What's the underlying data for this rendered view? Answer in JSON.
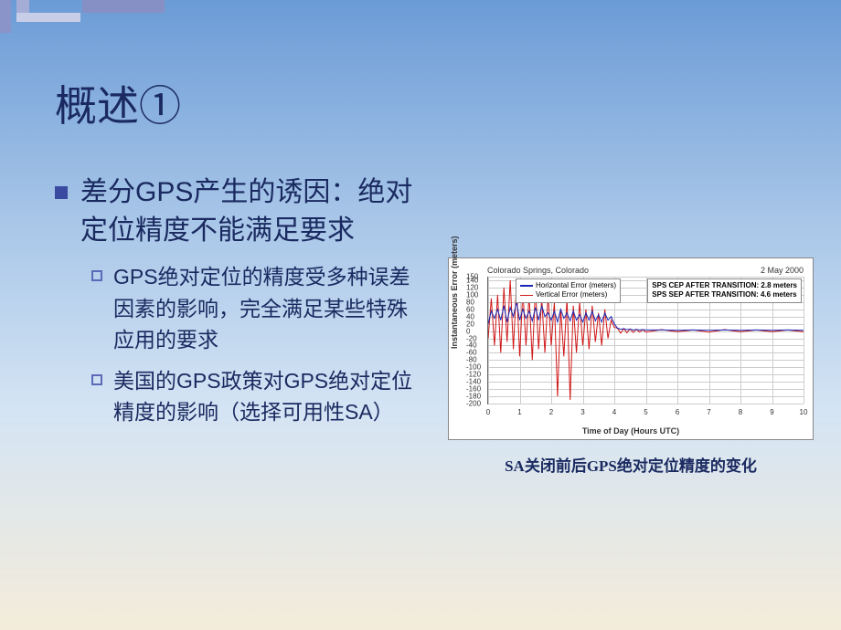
{
  "title": "概述①",
  "main_bullet": "差分GPS产生的诱因：绝对定位精度不能满足要求",
  "sub_bullets": [
    "GPS绝对定位的精度受多种误差因素的影响，完全满足某些特殊应用的要求",
    "美国的GPS政策对GPS绝对定位精度的影响（选择可用性SA）"
  ],
  "chart": {
    "type": "line",
    "header_left": "Colorado Springs, Colorado",
    "header_right": "2 May 2000",
    "ylabel": "Instantaneous Error (meters)",
    "xlabel": "Time of Day (Hours UTC)",
    "xlim": [
      0,
      10
    ],
    "ylim": [
      -200,
      150
    ],
    "xticks": [
      0,
      1,
      2,
      3,
      4,
      5,
      6,
      7,
      8,
      9,
      10
    ],
    "yticks": [
      -200,
      -180,
      -160,
      -140,
      -120,
      -100,
      -80,
      -60,
      -40,
      -20,
      0,
      20,
      40,
      60,
      80,
      100,
      120,
      140,
      150
    ],
    "ytick_labels": [
      "-200",
      "-180",
      "-160",
      "-140",
      "-120",
      "-100",
      "-80",
      "-60",
      "-40",
      "-20",
      "0",
      "20",
      "40",
      "60",
      "80",
      "100",
      "120",
      "140",
      "150"
    ],
    "grid_color": "#cccccc",
    "background_color": "#ffffff",
    "legend": [
      {
        "label": "Horizontal Error (meters)",
        "color": "#1828b4"
      },
      {
        "label": "Vertical Error (meters)",
        "color": "#d01818"
      }
    ],
    "annotation": [
      "SPS CEP AFTER TRANSITION:  2.8 meters",
      "SPS SEP AFTER TRANSITION:  4.6 meters"
    ],
    "series": {
      "horizontal": {
        "color": "#1828b4",
        "points": [
          [
            0,
            20
          ],
          [
            0.1,
            55
          ],
          [
            0.2,
            35
          ],
          [
            0.3,
            60
          ],
          [
            0.4,
            30
          ],
          [
            0.5,
            70
          ],
          [
            0.6,
            25
          ],
          [
            0.7,
            65
          ],
          [
            0.8,
            40
          ],
          [
            0.9,
            80
          ],
          [
            1.0,
            30
          ],
          [
            1.1,
            60
          ],
          [
            1.2,
            35
          ],
          [
            1.3,
            55
          ],
          [
            1.4,
            28
          ],
          [
            1.5,
            65
          ],
          [
            1.6,
            30
          ],
          [
            1.7,
            70
          ],
          [
            1.8,
            40
          ],
          [
            1.9,
            50
          ],
          [
            2.0,
            30
          ],
          [
            2.1,
            55
          ],
          [
            2.2,
            25
          ],
          [
            2.3,
            60
          ],
          [
            2.4,
            35
          ],
          [
            2.5,
            50
          ],
          [
            2.6,
            28
          ],
          [
            2.7,
            55
          ],
          [
            2.8,
            30
          ],
          [
            2.9,
            45
          ],
          [
            3.0,
            25
          ],
          [
            3.1,
            50
          ],
          [
            3.2,
            30
          ],
          [
            3.3,
            55
          ],
          [
            3.4,
            28
          ],
          [
            3.5,
            45
          ],
          [
            3.6,
            25
          ],
          [
            3.7,
            50
          ],
          [
            3.8,
            30
          ],
          [
            3.9,
            40
          ],
          [
            4.0,
            20
          ],
          [
            4.1,
            8
          ],
          [
            4.2,
            5
          ],
          [
            4.3,
            6
          ],
          [
            4.4,
            4
          ],
          [
            4.5,
            5
          ],
          [
            4.6,
            3
          ],
          [
            4.7,
            4
          ],
          [
            4.8,
            3
          ],
          [
            4.9,
            4
          ],
          [
            5.0,
            3
          ],
          [
            5.5,
            3
          ],
          [
            6.0,
            2
          ],
          [
            6.5,
            3
          ],
          [
            7.0,
            2
          ],
          [
            7.5,
            3
          ],
          [
            8.0,
            2
          ],
          [
            8.5,
            3
          ],
          [
            9.0,
            2
          ],
          [
            9.5,
            3
          ],
          [
            10.0,
            2
          ]
        ]
      },
      "vertical": {
        "color": "#d01818",
        "points": [
          [
            0,
            -20
          ],
          [
            0.1,
            90
          ],
          [
            0.2,
            -40
          ],
          [
            0.3,
            100
          ],
          [
            0.4,
            -60
          ],
          [
            0.5,
            120
          ],
          [
            0.6,
            -30
          ],
          [
            0.7,
            140
          ],
          [
            0.8,
            -50
          ],
          [
            0.9,
            130
          ],
          [
            1.0,
            -70
          ],
          [
            1.1,
            110
          ],
          [
            1.2,
            -40
          ],
          [
            1.3,
            100
          ],
          [
            1.4,
            -80
          ],
          [
            1.5,
            120
          ],
          [
            1.6,
            -50
          ],
          [
            1.7,
            90
          ],
          [
            1.8,
            -60
          ],
          [
            1.9,
            100
          ],
          [
            2.0,
            -40
          ],
          [
            2.1,
            80
          ],
          [
            2.2,
            -180
          ],
          [
            2.3,
            60
          ],
          [
            2.4,
            -70
          ],
          [
            2.5,
            90
          ],
          [
            2.6,
            -190
          ],
          [
            2.7,
            70
          ],
          [
            2.8,
            -60
          ],
          [
            2.9,
            80
          ],
          [
            3.0,
            -40
          ],
          [
            3.1,
            60
          ],
          [
            3.2,
            -50
          ],
          [
            3.3,
            70
          ],
          [
            3.4,
            -30
          ],
          [
            3.5,
            50
          ],
          [
            3.6,
            -40
          ],
          [
            3.7,
            60
          ],
          [
            3.8,
            -20
          ],
          [
            3.9,
            30
          ],
          [
            4.0,
            10
          ],
          [
            4.1,
            8
          ],
          [
            4.2,
            -6
          ],
          [
            4.3,
            7
          ],
          [
            4.4,
            -5
          ],
          [
            4.5,
            6
          ],
          [
            4.6,
            -4
          ],
          [
            4.7,
            5
          ],
          [
            4.8,
            -3
          ],
          [
            4.9,
            4
          ],
          [
            5.0,
            -3
          ],
          [
            5.5,
            4
          ],
          [
            6.0,
            -2
          ],
          [
            6.5,
            3
          ],
          [
            7.0,
            -3
          ],
          [
            7.5,
            4
          ],
          [
            8.0,
            -2
          ],
          [
            8.5,
            3
          ],
          [
            9.0,
            -2
          ],
          [
            9.5,
            3
          ],
          [
            10.0,
            -2
          ]
        ]
      }
    }
  },
  "caption": "SA关闭前后GPS绝对定位精度的变化",
  "colors": {
    "text": "#1a2a60",
    "bullet_fill": "#3a4aa0",
    "bullet_border": "#5a6ab8"
  }
}
